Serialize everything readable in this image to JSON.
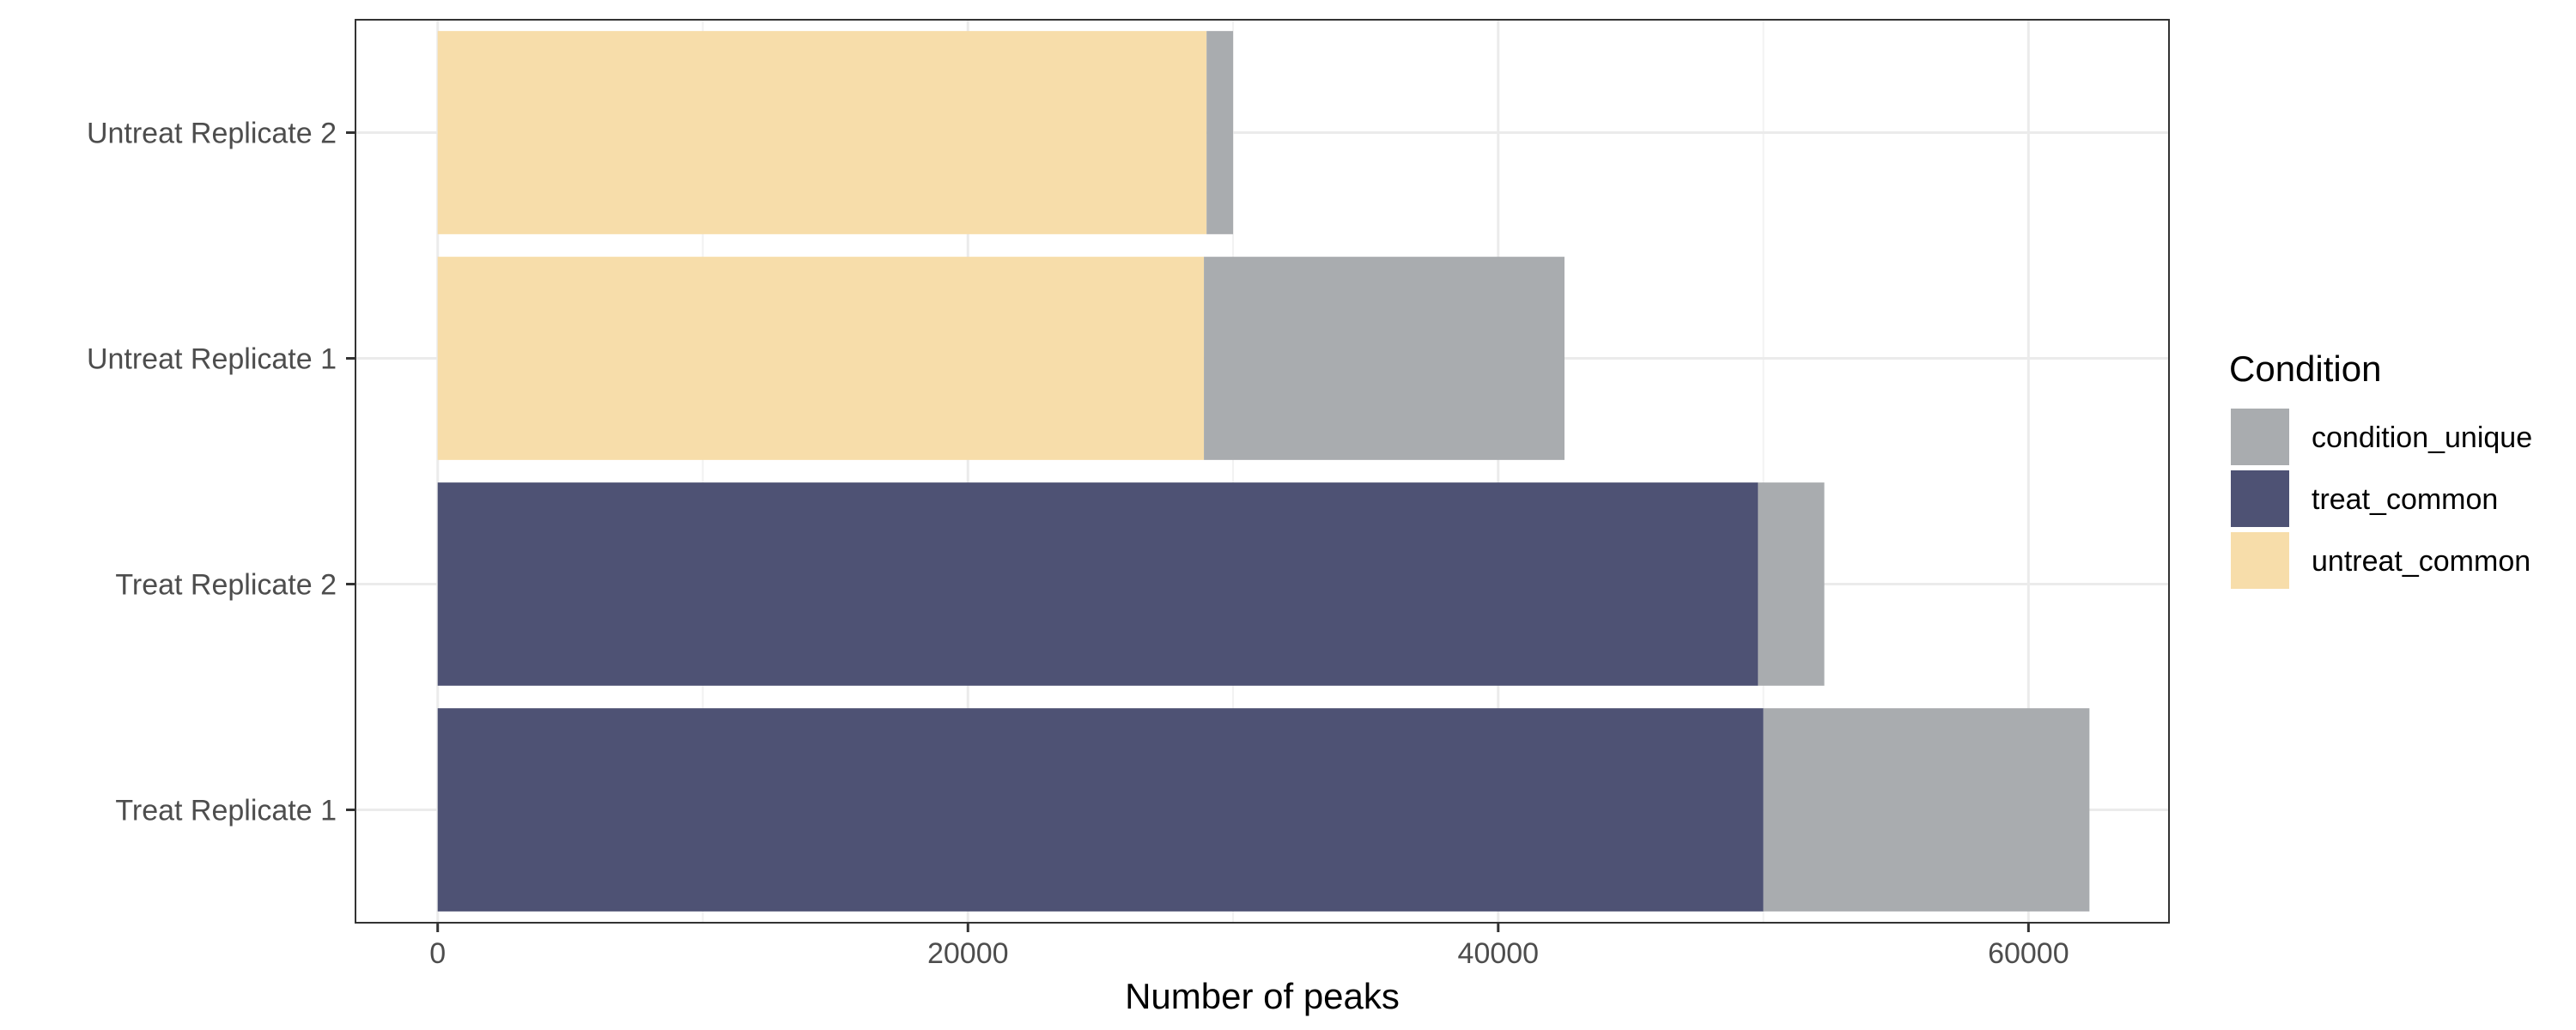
{
  "chart_data": {
    "type": "bar",
    "orientation": "horizontal",
    "stacked": true,
    "categories": [
      "Treat Replicate 1",
      "Treat Replicate 2",
      "Untreat Replicate 1",
      "Untreat Replicate 2"
    ],
    "series": [
      {
        "name": "treat_common",
        "color": "#4e5274",
        "values": [
          50000,
          49800,
          0,
          0
        ]
      },
      {
        "name": "untreat_common",
        "color": "#f7ddaa",
        "values": [
          0,
          0,
          28900,
          29000
        ]
      },
      {
        "name": "condition_unique",
        "color": "#a9acaf",
        "values": [
          12300,
          2500,
          13600,
          1000
        ]
      }
    ],
    "xlabel": "Number of peaks",
    "ylabel": "",
    "xlim": [
      -3100,
      65300
    ],
    "xticks": [
      0,
      20000,
      40000,
      60000
    ],
    "xtick_labels": [
      "0",
      "20000",
      "40000",
      "60000"
    ],
    "grid": true,
    "legend": {
      "title": "Condition",
      "position": "right",
      "items": [
        {
          "label": "condition_unique",
          "color": "#a9acaf"
        },
        {
          "label": "treat_common",
          "color": "#4e5274"
        },
        {
          "label": "untreat_common",
          "color": "#f7ddaa"
        }
      ]
    }
  }
}
